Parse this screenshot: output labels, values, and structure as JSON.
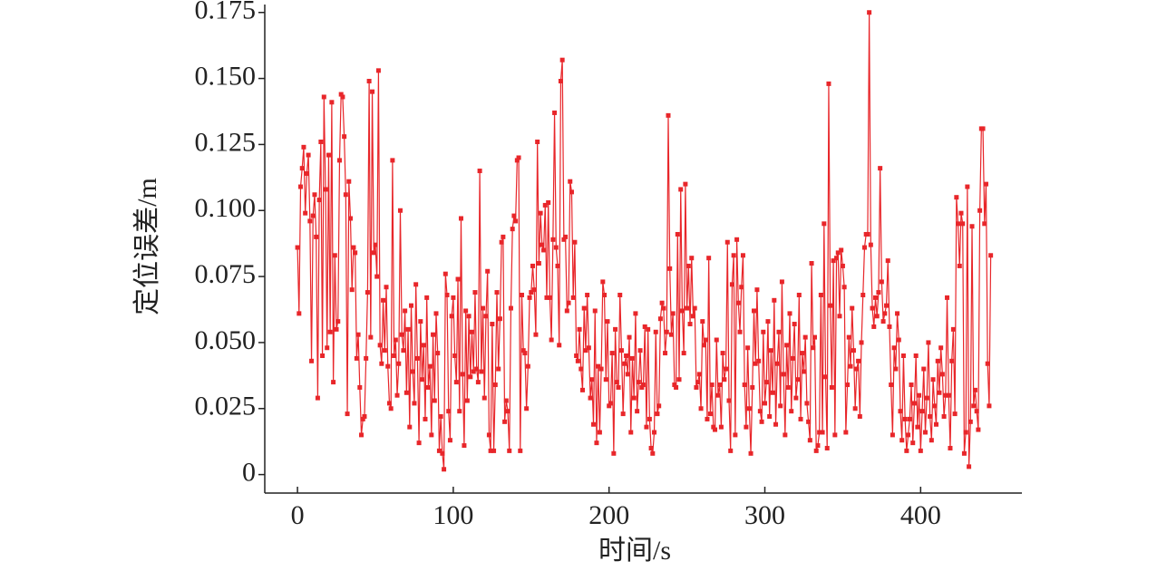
{
  "chart_data": {
    "type": "line",
    "xlabel": "时间/s",
    "ylabel": "定位误差/m",
    "xlim": [
      -21,
      465
    ],
    "ylim": [
      -0.007,
      0.178
    ],
    "xticks": [
      0,
      100,
      200,
      300,
      400
    ],
    "yticks": [
      0,
      0.025,
      {
        "value": 0.05,
        "label": "0.050"
      },
      0.075,
      {
        "value": 0.1,
        "label": "0.100"
      },
      0.125,
      {
        "value": 0.15,
        "label": "0.150"
      },
      0.175
    ],
    "x": [
      0,
      1,
      2,
      3,
      4,
      5,
      6,
      7,
      8,
      9,
      10,
      11,
      12,
      13,
      14,
      15,
      16,
      17,
      18,
      19,
      20,
      21,
      22,
      23,
      24,
      25,
      26,
      27,
      28,
      29,
      30,
      31,
      32,
      33,
      34,
      35,
      36,
      37,
      38,
      39,
      40,
      41,
      42,
      43,
      44,
      45,
      46,
      47,
      48,
      49,
      50,
      51,
      52,
      53,
      54,
      55,
      56,
      57,
      58,
      59,
      60,
      61,
      62,
      63,
      64,
      65,
      66,
      67,
      68,
      69,
      70,
      71,
      72,
      73,
      74,
      75,
      76,
      77,
      78,
      79,
      80,
      81,
      82,
      83,
      84,
      85,
      86,
      87,
      88,
      89,
      90,
      91,
      92,
      93,
      94,
      95,
      96,
      97,
      98,
      99,
      100,
      101,
      102,
      103,
      104,
      105,
      106,
      107,
      108,
      109,
      110,
      111,
      112,
      113,
      114,
      115,
      116,
      117,
      118,
      119,
      120,
      121,
      122,
      123,
      124,
      125,
      126,
      127,
      128,
      129,
      130,
      131,
      132,
      133,
      134,
      135,
      136,
      137,
      138,
      139,
      140,
      141,
      142,
      143,
      144,
      145,
      146,
      147,
      148,
      149,
      150,
      151,
      152,
      153,
      154,
      155,
      156,
      157,
      158,
      159,
      160,
      161,
      162,
      163,
      164,
      165,
      166,
      167,
      168,
      169,
      170,
      171,
      172,
      173,
      174,
      175,
      176,
      177,
      178,
      179,
      180,
      181,
      182,
      183,
      184,
      185,
      186,
      187,
      188,
      189,
      190,
      191,
      192,
      193,
      194,
      195,
      196,
      197,
      198,
      199,
      200,
      201,
      202,
      203,
      204,
      205,
      206,
      207,
      208,
      209,
      210,
      211,
      212,
      213,
      214,
      215,
      216,
      217,
      218,
      219,
      220,
      221,
      222,
      223,
      224,
      225,
      226,
      227,
      228,
      229,
      230,
      231,
      232,
      233,
      234,
      235,
      236,
      237,
      238,
      239,
      240,
      241,
      242,
      243,
      244,
      245,
      246,
      247,
      248,
      249,
      250,
      251,
      252,
      253,
      254,
      255,
      256,
      257,
      258,
      259,
      260,
      261,
      262,
      263,
      264,
      265,
      266,
      267,
      268,
      269,
      270,
      271,
      272,
      273,
      274,
      275,
      276,
      277,
      278,
      279,
      280,
      281,
      282,
      283,
      284,
      285,
      286,
      287,
      288,
      289,
      290,
      291,
      292,
      293,
      294,
      295,
      296,
      297,
      298,
      299,
      300,
      301,
      302,
      303,
      304,
      305,
      306,
      307,
      308,
      309,
      310,
      311,
      312,
      313,
      314,
      315,
      316,
      317,
      318,
      319,
      320,
      321,
      322,
      323,
      324,
      325,
      326,
      327,
      328,
      329,
      330,
      331,
      332,
      333,
      334,
      335,
      336,
      337,
      338,
      339,
      340,
      341,
      342,
      343,
      344,
      345,
      346,
      347,
      348,
      349,
      350,
      351,
      352,
      353,
      354,
      355,
      356,
      357,
      358,
      359,
      360,
      361,
      362,
      363,
      364,
      365,
      366,
      367,
      368,
      369,
      370,
      371,
      372,
      373,
      374,
      375,
      376,
      377,
      378,
      379,
      380,
      381,
      382,
      383,
      384,
      385,
      386,
      387,
      388,
      389,
      390,
      391,
      392,
      393,
      394,
      395,
      396,
      397,
      398,
      399,
      400,
      401,
      402,
      403,
      404,
      405,
      406,
      407,
      408,
      409,
      410,
      411,
      412,
      413,
      414,
      415,
      416,
      417,
      418,
      419,
      420,
      421,
      422,
      423,
      424,
      425,
      426,
      427,
      428,
      429,
      430,
      431,
      432,
      433,
      434,
      435,
      436,
      437,
      438,
      439,
      440,
      441,
      442,
      443,
      444,
      445
    ],
    "series": [
      {
        "color": "#e8262a",
        "values": [
          0.086,
          0.061,
          0.109,
          0.116,
          0.124,
          0.099,
          0.114,
          0.121,
          0.096,
          0.043,
          0.098,
          0.106,
          0.09,
          0.029,
          0.104,
          0.126,
          0.045,
          0.143,
          0.108,
          0.048,
          0.121,
          0.054,
          0.141,
          0.035,
          0.083,
          0.055,
          0.058,
          0.119,
          0.144,
          0.143,
          0.128,
          0.106,
          0.023,
          0.111,
          0.097,
          0.07,
          0.086,
          0.084,
          0.044,
          0.053,
          0.033,
          0.015,
          0.021,
          0.022,
          0.044,
          0.069,
          0.149,
          0.052,
          0.145,
          0.084,
          0.087,
          0.075,
          0.153,
          0.049,
          0.042,
          0.066,
          0.047,
          0.071,
          0.041,
          0.027,
          0.025,
          0.119,
          0.045,
          0.051,
          0.03,
          0.042,
          0.1,
          0.053,
          0.047,
          0.062,
          0.031,
          0.055,
          0.018,
          0.064,
          0.039,
          0.027,
          0.072,
          0.044,
          0.012,
          0.058,
          0.036,
          0.049,
          0.021,
          0.067,
          0.033,
          0.041,
          0.015,
          0.053,
          0.028,
          0.061,
          0.046,
          0.009,
          0.022,
          0.008,
          0.002,
          0.076,
          0.068,
          0.024,
          0.013,
          0.06,
          0.067,
          0.045,
          0.035,
          0.074,
          0.024,
          0.097,
          0.038,
          0.011,
          0.062,
          0.028,
          0.06,
          0.037,
          0.054,
          0.039,
          0.069,
          0.04,
          0.035,
          0.115,
          0.039,
          0.063,
          0.029,
          0.06,
          0.077,
          0.015,
          0.009,
          0.057,
          0.009,
          0.034,
          0.069,
          0.04,
          0.059,
          0.088,
          0.09,
          0.02,
          0.028,
          0.024,
          0.009,
          0.063,
          0.093,
          0.098,
          0.096,
          0.119,
          0.12,
          0.009,
          0.068,
          0.047,
          0.046,
          0.025,
          0.041,
          0.067,
          0.069,
          0.079,
          0.07,
          0.053,
          0.126,
          0.08,
          0.099,
          0.087,
          0.085,
          0.102,
          0.067,
          0.103,
          0.067,
          0.051,
          0.089,
          0.137,
          0.086,
          0.079,
          0.049,
          0.149,
          0.157,
          0.089,
          0.09,
          0.062,
          0.065,
          0.111,
          0.107,
          0.067,
          0.088,
          0.045,
          0.043,
          0.055,
          0.04,
          0.032,
          0.063,
          0.047,
          0.068,
          0.048,
          0.029,
          0.036,
          0.019,
          0.062,
          0.012,
          0.041,
          0.016,
          0.04,
          0.073,
          0.068,
          0.036,
          0.058,
          0.026,
          0.027,
          0.046,
          0.008,
          0.055,
          0.035,
          0.033,
          0.068,
          0.047,
          0.023,
          0.042,
          0.045,
          0.038,
          0.052,
          0.016,
          0.044,
          0.029,
          0.061,
          0.024,
          0.035,
          0.047,
          0.033,
          0.034,
          0.056,
          0.018,
          0.055,
          0.021,
          0.01,
          0.008,
          0.016,
          0.054,
          0.023,
          0.026,
          0.059,
          0.065,
          0.063,
          0.046,
          0.054,
          0.136,
          0.078,
          0.053,
          0.061,
          0.034,
          0.033,
          0.091,
          0.036,
          0.108,
          0.062,
          0.046,
          0.11,
          0.063,
          0.079,
          0.057,
          0.082,
          0.06,
          0.063,
          0.033,
          0.035,
          0.038,
          0.025,
          0.058,
          0.049,
          0.051,
          0.021,
          0.082,
          0.023,
          0.034,
          0.018,
          0.017,
          0.051,
          0.03,
          0.034,
          0.018,
          0.046,
          0.036,
          0.04,
          0.088,
          0.028,
          0.009,
          0.072,
          0.083,
          0.015,
          0.089,
          0.065,
          0.054,
          0.071,
          0.083,
          0.034,
          0.018,
          0.048,
          0.025,
          0.008,
          0.033,
          0.062,
          0.042,
          0.07,
          0.043,
          0.024,
          0.02,
          0.054,
          0.027,
          0.035,
          0.058,
          0.022,
          0.047,
          0.031,
          0.066,
          0.019,
          0.042,
          0.054,
          0.026,
          0.073,
          0.038,
          0.015,
          0.049,
          0.033,
          0.061,
          0.024,
          0.044,
          0.057,
          0.029,
          0.036,
          0.068,
          0.021,
          0.046,
          0.039,
          0.052,
          0.027,
          0.02,
          0.013,
          0.08,
          0.048,
          0.052,
          0.009,
          0.011,
          0.016,
          0.068,
          0.016,
          0.095,
          0.037,
          0.01,
          0.148,
          0.064,
          0.033,
          0.081,
          0.015,
          0.082,
          0.084,
          0.06,
          0.085,
          0.079,
          0.071,
          0.016,
          0.034,
          0.052,
          0.041,
          0.063,
          0.047,
          0.025,
          0.04,
          0.043,
          0.022,
          0.05,
          0.068,
          0.086,
          0.091,
          0.091,
          0.175,
          0.087,
          0.063,
          0.056,
          0.067,
          0.06,
          0.069,
          0.116,
          0.073,
          0.058,
          0.061,
          0.064,
          0.081,
          0.056,
          0.034,
          0.015,
          0.048,
          0.04,
          0.061,
          0.051,
          0.024,
          0.013,
          0.045,
          0.021,
          0.009,
          0.015,
          0.021,
          0.034,
          0.012,
          0.027,
          0.045,
          0.018,
          0.03,
          0.009,
          0.024,
          0.04,
          0.016,
          0.029,
          0.05,
          0.022,
          0.013,
          0.036,
          0.026,
          0.019,
          0.043,
          0.031,
          0.048,
          0.038,
          0.022,
          0.03,
          0.067,
          0.03,
          0.01,
          0.043,
          0.055,
          0.023,
          0.105,
          0.095,
          0.079,
          0.099,
          0.095,
          0.008,
          0.016,
          0.109,
          0.003,
          0.02,
          0.094,
          0.026,
          0.032,
          0.024,
          0.017,
          0.1,
          0.131,
          0.131,
          0.095,
          0.11,
          0.042,
          0.026,
          0.083
        ]
      }
    ]
  }
}
